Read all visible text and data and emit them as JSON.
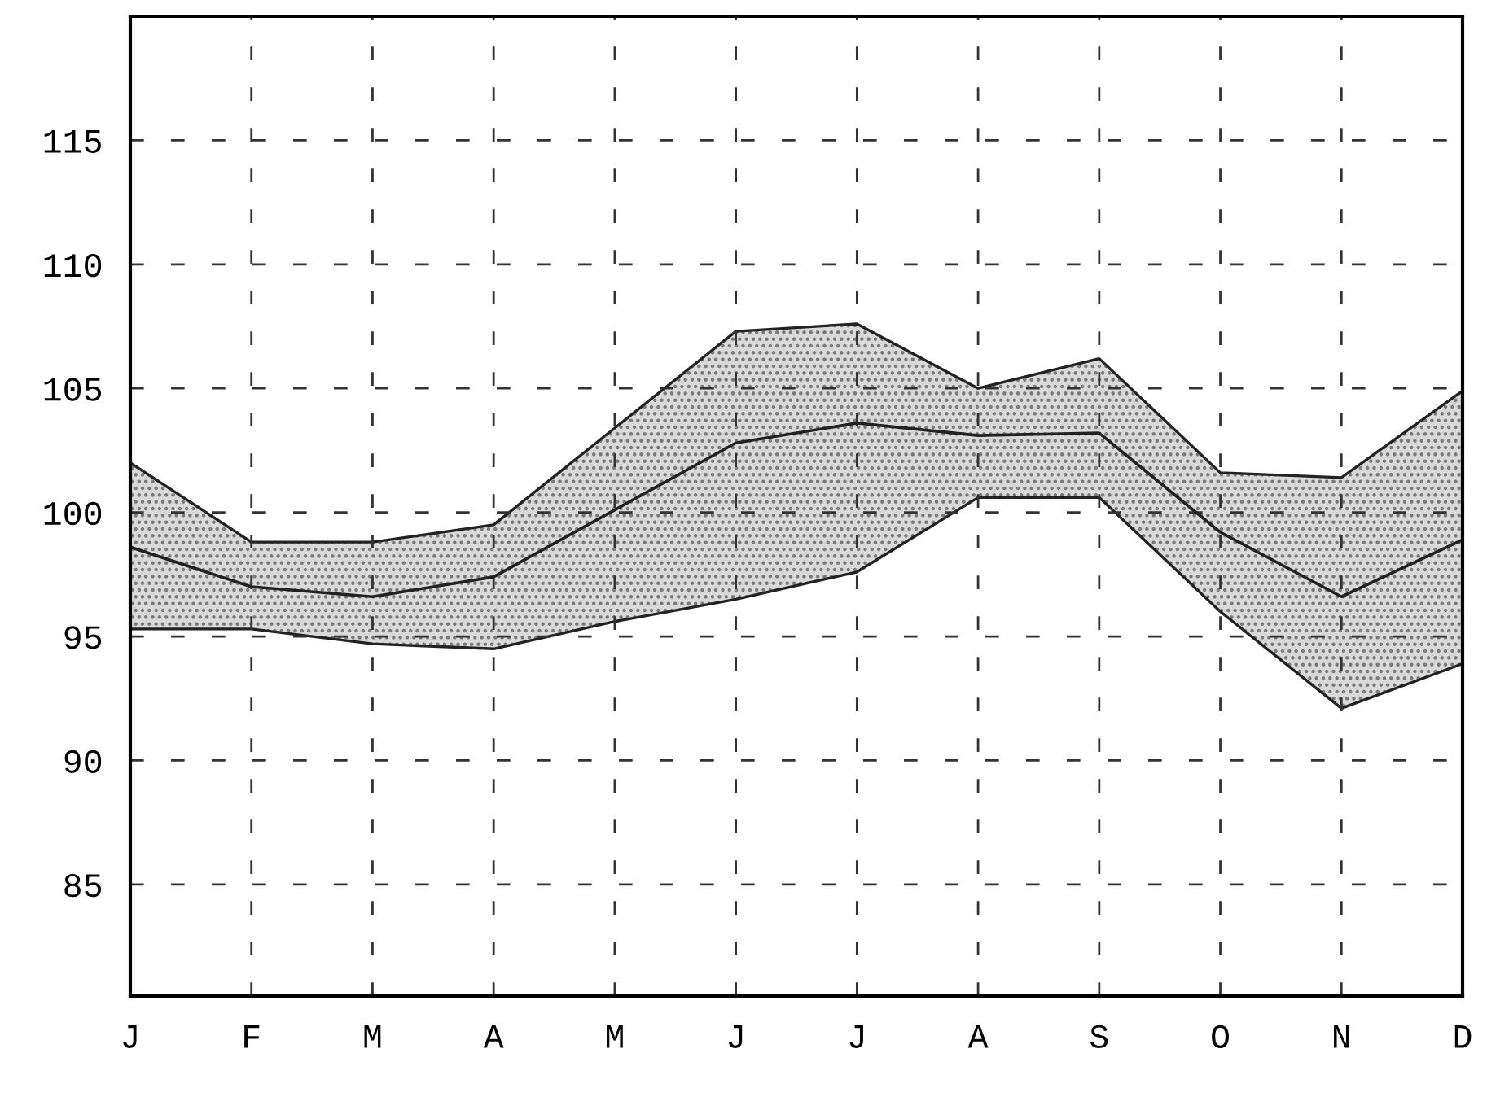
{
  "chart_data": {
    "type": "line",
    "categories": [
      "J",
      "F",
      "M",
      "A",
      "M",
      "J",
      "J",
      "A",
      "S",
      "O",
      "N",
      "D"
    ],
    "series": [
      {
        "color": "#222222",
        "values": [
          98.6,
          97.0,
          96.6,
          97.4,
          100.1,
          102.8,
          103.6,
          103.1,
          103.2,
          99.2,
          96.6,
          98.9
        ],
        "lower": [
          95.3,
          95.3,
          94.7,
          94.5,
          95.6,
          96.5,
          97.6,
          100.6,
          100.6,
          96.0,
          92.1,
          93.9
        ],
        "upper": [
          102.0,
          98.8,
          98.8,
          99.5,
          103.4,
          107.3,
          107.6,
          105.0,
          106.2,
          101.6,
          101.4,
          104.9
        ]
      }
    ],
    "ylim": [
      80.5,
      120
    ],
    "yticks": [
      85,
      90,
      95,
      100,
      105,
      110,
      115
    ],
    "grid": true,
    "marker": "none",
    "line_style": "solid"
  }
}
